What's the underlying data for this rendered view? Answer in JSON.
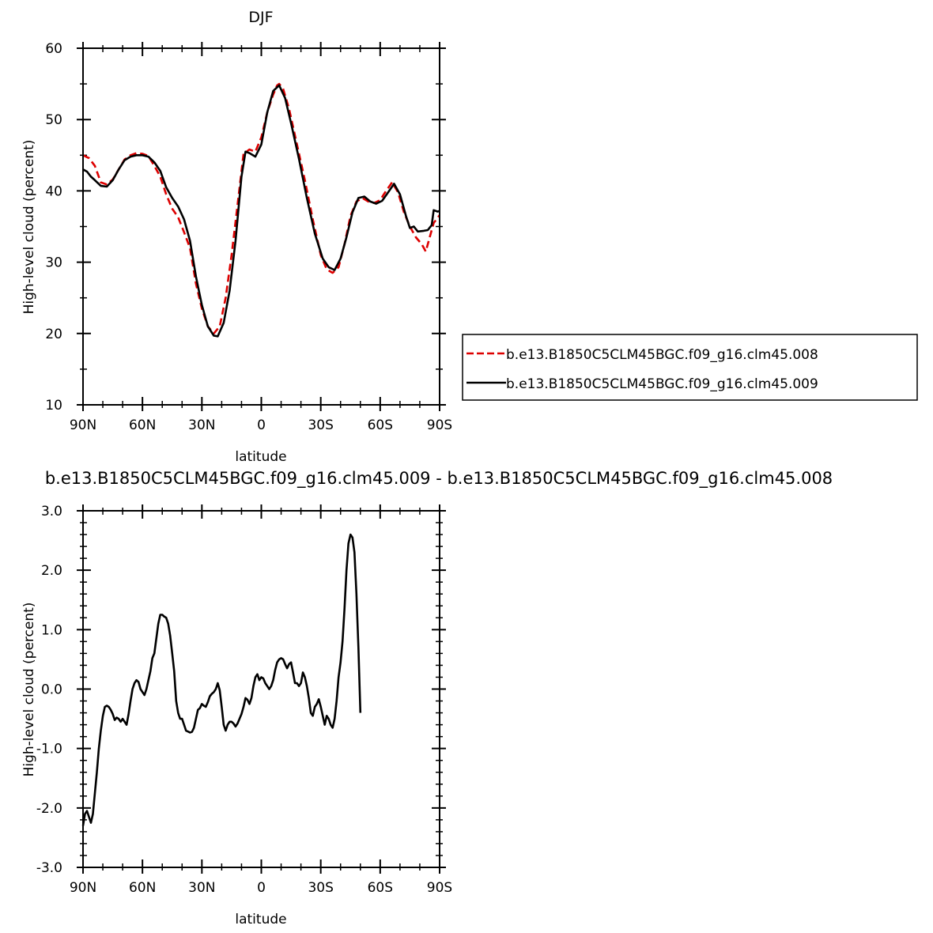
{
  "chart_data": [
    {
      "type": "line",
      "title": "DJF",
      "xlabel": "latitude",
      "ylabel": "High-level cloud (percent)",
      "xlim": [
        90,
        -90
      ],
      "ylim": [
        10,
        60
      ],
      "x_ticks": [
        90,
        60,
        30,
        0,
        -30,
        -60,
        -90
      ],
      "x_tick_labels": [
        "90N",
        "60N",
        "30N",
        "0",
        "30S",
        "60S",
        "90S"
      ],
      "y_ticks": [
        10,
        20,
        30,
        40,
        50,
        60
      ],
      "y_tick_labels": [
        "10",
        "20",
        "30",
        "40",
        "50",
        "60"
      ],
      "legend_position": "right",
      "series": [
        {
          "name": "b.e13.B1850C5CLM45BGC.f09_g16.clm45.008",
          "color": "#dd0000",
          "dash": "dashed",
          "points": [
            [
              90,
              45.0
            ],
            [
              87,
              44.6
            ],
            [
              84,
              43.5
            ],
            [
              81,
              41.2
            ],
            [
              78,
              40.9
            ],
            [
              75,
              41.6
            ],
            [
              72,
              43.0
            ],
            [
              69,
              44.4
            ],
            [
              66,
              45.0
            ],
            [
              63,
              45.3
            ],
            [
              60,
              45.2
            ],
            [
              57,
              44.9
            ],
            [
              54,
              43.5
            ],
            [
              51,
              42.0
            ],
            [
              48,
              39.5
            ],
            [
              45,
              37.5
            ],
            [
              42,
              36.3
            ],
            [
              39,
              34.2
            ],
            [
              36,
              32.0
            ],
            [
              33,
              27.0
            ],
            [
              30,
              23.5
            ],
            [
              27,
              21.0
            ],
            [
              24,
              20.0
            ],
            [
              21,
              21.0
            ],
            [
              18,
              25.0
            ],
            [
              15,
              31.0
            ],
            [
              12,
              38.0
            ],
            [
              9,
              45.2
            ],
            [
              6,
              45.8
            ],
            [
              3,
              45.5
            ],
            [
              0,
              47.5
            ],
            [
              -3,
              51.0
            ],
            [
              -6,
              53.5
            ],
            [
              -8,
              54.8
            ],
            [
              -9,
              55.0
            ],
            [
              -11,
              54.3
            ],
            [
              -14,
              51.5
            ],
            [
              -18,
              46.5
            ],
            [
              -22,
              41.5
            ],
            [
              -26,
              36.0
            ],
            [
              -30,
              31.0
            ],
            [
              -33,
              29.0
            ],
            [
              -36,
              28.5
            ],
            [
              -39,
              29.3
            ],
            [
              -42,
              32.5
            ],
            [
              -45,
              36.5
            ],
            [
              -48,
              38.5
            ],
            [
              -51,
              39.0
            ],
            [
              -54,
              38.5
            ],
            [
              -57,
              38.3
            ],
            [
              -60,
              38.7
            ],
            [
              -63,
              40.0
            ],
            [
              -66,
              41.2
            ],
            [
              -69,
              39.8
            ],
            [
              -72,
              37.0
            ],
            [
              -75,
              35.0
            ],
            [
              -78,
              33.5
            ],
            [
              -81,
              32.5
            ],
            [
              -83,
              31.5
            ],
            [
              -85,
              33.5
            ],
            [
              -87,
              35.5
            ],
            [
              -90,
              36.6
            ]
          ]
        },
        {
          "name": "b.e13.B1850C5CLM45BGC.f09_g16.clm45.009",
          "color": "#000000",
          "dash": "solid",
          "points": [
            [
              90,
              43.0
            ],
            [
              88,
              42.7
            ],
            [
              86,
              42.0
            ],
            [
              84,
              41.5
            ],
            [
              81,
              40.7
            ],
            [
              78,
              40.6
            ],
            [
              75,
              41.5
            ],
            [
              72,
              43.0
            ],
            [
              69,
              44.3
            ],
            [
              66,
              44.8
            ],
            [
              63,
              45.0
            ],
            [
              60,
              45.0
            ],
            [
              57,
              44.8
            ],
            [
              54,
              44.0
            ],
            [
              51,
              42.8
            ],
            [
              48,
              40.5
            ],
            [
              45,
              39.0
            ],
            [
              42,
              37.8
            ],
            [
              39,
              36.0
            ],
            [
              36,
              33.0
            ],
            [
              33,
              28.0
            ],
            [
              30,
              24.0
            ],
            [
              27,
              21.0
            ],
            [
              24,
              19.7
            ],
            [
              22,
              19.6
            ],
            [
              19,
              21.5
            ],
            [
              16,
              26.0
            ],
            [
              13,
              33.0
            ],
            [
              10,
              42.0
            ],
            [
              8,
              45.5
            ],
            [
              6,
              45.3
            ],
            [
              3,
              44.8
            ],
            [
              0,
              46.5
            ],
            [
              -3,
              51.0
            ],
            [
              -6,
              54.0
            ],
            [
              -9,
              54.8
            ],
            [
              -12,
              53.0
            ],
            [
              -15,
              49.5
            ],
            [
              -19,
              44.5
            ],
            [
              -23,
              39.0
            ],
            [
              -27,
              34.0
            ],
            [
              -31,
              30.5
            ],
            [
              -34,
              29.3
            ],
            [
              -37,
              28.9
            ],
            [
              -40,
              30.5
            ],
            [
              -43,
              33.5
            ],
            [
              -46,
              37.0
            ],
            [
              -49,
              39.0
            ],
            [
              -52,
              39.2
            ],
            [
              -55,
              38.5
            ],
            [
              -58,
              38.2
            ],
            [
              -61,
              38.6
            ],
            [
              -64,
              39.8
            ],
            [
              -67,
              41.0
            ],
            [
              -70,
              39.5
            ],
            [
              -73,
              36.5
            ],
            [
              -75,
              34.8
            ],
            [
              -77,
              35.0
            ],
            [
              -79,
              34.3
            ],
            [
              -82,
              34.4
            ],
            [
              -84,
              34.5
            ],
            [
              -86,
              35.2
            ],
            [
              -87,
              37.3
            ],
            [
              -89,
              37.1
            ],
            [
              -90,
              37.2
            ]
          ]
        }
      ]
    },
    {
      "type": "line",
      "title": "b.e13.B1850C5CLM45BGC.f09_g16.clm45.009 - b.e13.B1850C5CLM45BGC.f09_g16.clm45.008",
      "xlabel": "latitude",
      "ylabel": "High-level cloud (percent)",
      "xlim": [
        90,
        -90
      ],
      "ylim": [
        -3.0,
        3.0
      ],
      "x_ticks": [
        90,
        60,
        30,
        0,
        -30,
        -60,
        -90
      ],
      "x_tick_labels": [
        "90N",
        "60N",
        "30N",
        "0",
        "30S",
        "60S",
        "90S"
      ],
      "y_ticks": [
        -3,
        -2,
        -1,
        0,
        1,
        2,
        3
      ],
      "y_tick_labels": [
        "-3.0",
        "-2.0",
        "-1.0",
        "0.0",
        "1.0",
        "2.0",
        "3.0"
      ],
      "series": [
        {
          "name": "",
          "color": "#000000",
          "dash": "solid",
          "points": [
            [
              90,
              -2.3
            ],
            [
              89,
              -2.1
            ],
            [
              88,
              -2.05
            ],
            [
              87,
              -2.15
            ],
            [
              86,
              -2.25
            ],
            [
              85,
              -2.1
            ],
            [
              84,
              -1.75
            ],
            [
              83,
              -1.4
            ],
            [
              82,
              -1.0
            ],
            [
              81,
              -0.7
            ],
            [
              80,
              -0.45
            ],
            [
              79,
              -0.3
            ],
            [
              78,
              -0.28
            ],
            [
              77,
              -0.3
            ],
            [
              76,
              -0.35
            ],
            [
              75,
              -0.42
            ],
            [
              74,
              -0.52
            ],
            [
              73,
              -0.48
            ],
            [
              72,
              -0.5
            ],
            [
              71,
              -0.55
            ],
            [
              70,
              -0.5
            ],
            [
              69,
              -0.55
            ],
            [
              68,
              -0.6
            ],
            [
              67,
              -0.42
            ],
            [
              66,
              -0.2
            ],
            [
              65,
              0.0
            ],
            [
              64,
              0.1
            ],
            [
              63,
              0.15
            ],
            [
              62,
              0.12
            ],
            [
              61,
              0.0
            ],
            [
              60,
              -0.05
            ],
            [
              59,
              -0.1
            ],
            [
              58,
              0.0
            ],
            [
              57,
              0.15
            ],
            [
              56,
              0.3
            ],
            [
              55,
              0.52
            ],
            [
              54,
              0.6
            ],
            [
              53,
              0.85
            ],
            [
              52,
              1.1
            ],
            [
              51,
              1.25
            ],
            [
              50,
              1.25
            ],
            [
              49,
              1.22
            ],
            [
              48,
              1.2
            ],
            [
              47,
              1.1
            ],
            [
              46,
              0.9
            ],
            [
              45,
              0.6
            ],
            [
              44,
              0.3
            ],
            [
              43,
              -0.2
            ],
            [
              42,
              -0.4
            ],
            [
              41,
              -0.5
            ],
            [
              40,
              -0.5
            ],
            [
              39,
              -0.6
            ],
            [
              38,
              -0.7
            ],
            [
              36,
              -0.73
            ],
            [
              35,
              -0.72
            ],
            [
              34,
              -0.65
            ],
            [
              33,
              -0.5
            ],
            [
              32,
              -0.35
            ],
            [
              31,
              -0.32
            ],
            [
              30,
              -0.25
            ],
            [
              29,
              -0.28
            ],
            [
              28,
              -0.3
            ],
            [
              27,
              -0.22
            ],
            [
              26,
              -0.12
            ],
            [
              25,
              -0.08
            ],
            [
              24,
              -0.05
            ],
            [
              23,
              0.0
            ],
            [
              22,
              0.1
            ],
            [
              21,
              -0.02
            ],
            [
              20,
              -0.3
            ],
            [
              19,
              -0.6
            ],
            [
              18,
              -0.7
            ],
            [
              17,
              -0.6
            ],
            [
              16,
              -0.55
            ],
            [
              15,
              -0.55
            ],
            [
              14,
              -0.58
            ],
            [
              13,
              -0.63
            ],
            [
              12,
              -0.58
            ],
            [
              11,
              -0.5
            ],
            [
              10,
              -0.42
            ],
            [
              9,
              -0.3
            ],
            [
              8,
              -0.15
            ],
            [
              7,
              -0.18
            ],
            [
              6,
              -0.25
            ],
            [
              5,
              -0.15
            ],
            [
              4,
              0.05
            ],
            [
              3,
              0.2
            ],
            [
              2,
              0.25
            ],
            [
              1,
              0.15
            ],
            [
              0,
              0.2
            ],
            [
              -1,
              0.18
            ],
            [
              -2,
              0.1
            ],
            [
              -3,
              0.05
            ],
            [
              -4,
              0.0
            ],
            [
              -5,
              0.05
            ],
            [
              -6,
              0.15
            ],
            [
              -7,
              0.32
            ],
            [
              -8,
              0.45
            ],
            [
              -9,
              0.5
            ],
            [
              -10,
              0.52
            ],
            [
              -11,
              0.5
            ],
            [
              -12,
              0.42
            ],
            [
              -13,
              0.35
            ],
            [
              -14,
              0.42
            ],
            [
              -15,
              0.45
            ],
            [
              -16,
              0.28
            ],
            [
              -17,
              0.1
            ],
            [
              -18,
              0.1
            ],
            [
              -19,
              0.05
            ],
            [
              -20,
              0.1
            ],
            [
              -21,
              0.28
            ],
            [
              -22,
              0.2
            ],
            [
              -23,
              0.05
            ],
            [
              -24,
              -0.15
            ],
            [
              -25,
              -0.4
            ],
            [
              -26,
              -0.45
            ],
            [
              -27,
              -0.3
            ],
            [
              -28,
              -0.25
            ],
            [
              -29,
              -0.17
            ],
            [
              -30,
              -0.3
            ],
            [
              -31,
              -0.45
            ],
            [
              -32,
              -0.6
            ],
            [
              -33,
              -0.45
            ],
            [
              -34,
              -0.5
            ],
            [
              -35,
              -0.6
            ],
            [
              -36,
              -0.65
            ],
            [
              -37,
              -0.5
            ],
            [
              -38,
              -0.2
            ],
            [
              -39,
              0.2
            ],
            [
              -40,
              0.45
            ],
            [
              -41,
              0.8
            ],
            [
              -42,
              1.35
            ],
            [
              -43,
              2.0
            ],
            [
              -44,
              2.45
            ],
            [
              -45,
              2.6
            ],
            [
              -46,
              2.55
            ],
            [
              -47,
              2.3
            ],
            [
              -48,
              1.6
            ],
            [
              -49,
              0.7
            ],
            [
              -50,
              -0.4
            ]
          ]
        }
      ]
    }
  ]
}
